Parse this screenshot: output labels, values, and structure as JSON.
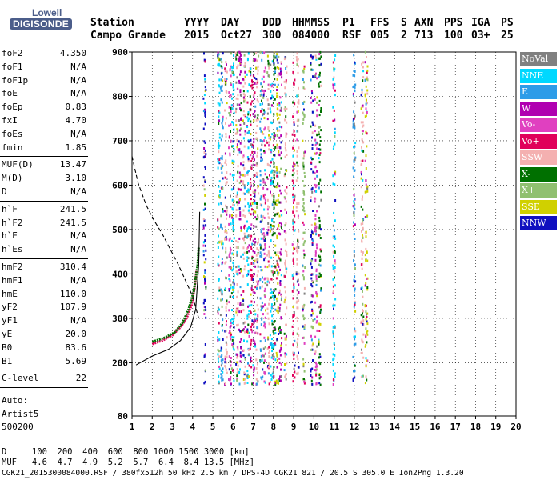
{
  "logo": {
    "line1": "Lowell",
    "line2": "DIGISONDE"
  },
  "header": {
    "row1": [
      "Station",
      "YYYY",
      "DAY",
      "DDD",
      "HHMMSS",
      "P1",
      "FFS",
      "S",
      "AXN",
      "PPS",
      "IGA",
      "PS"
    ],
    "row2": [
      "Campo Grande",
      "2015",
      "Oct27",
      "300",
      "084000",
      "RSF",
      "005",
      "2",
      "713",
      "100",
      "03+",
      "25"
    ]
  },
  "params": {
    "group1": [
      {
        "label": "foF2",
        "value": "4.350"
      },
      {
        "label": "foF1",
        "value": "N/A"
      },
      {
        "label": "foF1p",
        "value": "N/A"
      },
      {
        "label": "foE",
        "value": "N/A"
      },
      {
        "label": "foEp",
        "value": "0.83"
      },
      {
        "label": "fxI",
        "value": "4.70"
      },
      {
        "label": "foEs",
        "value": "N/A"
      },
      {
        "label": "fmin",
        "value": "1.85"
      }
    ],
    "group2": [
      {
        "label": "MUF(D)",
        "value": "13.47"
      },
      {
        "label": "M(D)",
        "value": "3.10"
      },
      {
        "label": "D",
        "value": "N/A"
      }
    ],
    "group3": [
      {
        "label": "h`F",
        "value": "241.5"
      },
      {
        "label": "h`F2",
        "value": "241.5"
      },
      {
        "label": "h`E",
        "value": "N/A"
      },
      {
        "label": "h`Es",
        "value": "N/A"
      }
    ],
    "group4": [
      {
        "label": "hmF2",
        "value": "310.4"
      },
      {
        "label": "hmF1",
        "value": "N/A"
      },
      {
        "label": "hmE",
        "value": "110.0"
      },
      {
        "label": "yF2",
        "value": "107.9"
      },
      {
        "label": "yF1",
        "value": "N/A"
      },
      {
        "label": "yE",
        "value": "20.0"
      },
      {
        "label": "B0",
        "value": "83.6"
      },
      {
        "label": "B1",
        "value": "5.69"
      }
    ],
    "group5": [
      {
        "label": "C-level",
        "value": "22"
      }
    ],
    "auto": [
      "Auto:",
      "Artist5",
      "500200"
    ]
  },
  "legend": [
    {
      "label": "NoVal",
      "color": "#808080"
    },
    {
      "label": "NNE",
      "color": "#00d8ff"
    },
    {
      "label": "E",
      "color": "#2d9ce8"
    },
    {
      "label": "W",
      "color": "#b000b0"
    },
    {
      "label": "Vo-",
      "color": "#e040c0"
    },
    {
      "label": "Vo+",
      "color": "#e0005a"
    },
    {
      "label": "SSW",
      "color": "#f4b0b0"
    },
    {
      "label": "X-",
      "color": "#007000"
    },
    {
      "label": "X+",
      "color": "#90c070"
    },
    {
      "label": "SSE",
      "color": "#d0d000"
    },
    {
      "label": "NNW",
      "color": "#1010c0"
    }
  ],
  "footer": {
    "line1": "D     100  200  400  600  800 1000 1500 3000 [km]",
    "line2": "MUF   4.6  4.7  4.9  5.2  5.7  6.4  8.4 13.5 [MHz]",
    "line3": "CGK21_2015300084000.RSF / 380fx512h 50 kHz 2.5 km / DPS-4D CGK21 821 / 20.5 S 305.0 E Ion2Png 1.3.20"
  },
  "chart_data": {
    "type": "scatter",
    "title": "",
    "xlabel": "",
    "ylabel": "",
    "xlim": [
      1,
      20
    ],
    "ylim": [
      80,
      900
    ],
    "xticks": [
      1,
      2,
      3,
      4,
      5,
      6,
      7,
      8,
      9,
      10,
      11,
      12,
      13,
      14,
      15,
      16,
      17,
      18,
      19,
      20
    ],
    "yticks": [
      200,
      300,
      400,
      500,
      600,
      700,
      800,
      900
    ],
    "yticks_extra_label": "80",
    "grid": true,
    "echo_columns": [
      {
        "x": 4.6,
        "color": "#1010c0"
      },
      {
        "x": 5.3,
        "color": "#00d8ff"
      },
      {
        "x": 5.45,
        "color": "#2d9ce8"
      },
      {
        "x": 5.65,
        "color": "#f4b0b0"
      },
      {
        "x": 5.85,
        "color": "#e040c0"
      },
      {
        "x": 6.0,
        "color": "#00d8ff"
      },
      {
        "x": 6.2,
        "color": "#f4b0b0"
      },
      {
        "x": 6.35,
        "color": "#b000b0"
      },
      {
        "x": 6.55,
        "color": "#f4b0b0"
      },
      {
        "x": 6.75,
        "color": "#00d8ff"
      },
      {
        "x": 6.9,
        "color": "#e0005a"
      },
      {
        "x": 7.05,
        "color": "#b000b0"
      },
      {
        "x": 7.2,
        "color": "#f4b0b0"
      },
      {
        "x": 7.4,
        "color": "#2d9ce8"
      },
      {
        "x": 7.55,
        "color": "#e040c0"
      },
      {
        "x": 7.75,
        "color": "#f4b0b0"
      },
      {
        "x": 7.9,
        "color": "#00d8ff"
      },
      {
        "x": 8.05,
        "color": "#007000"
      },
      {
        "x": 8.2,
        "color": "#d0d000"
      },
      {
        "x": 8.35,
        "color": "#b000b0"
      },
      {
        "x": 8.6,
        "color": "#f4b0b0"
      },
      {
        "x": 9.0,
        "color": "#e0005a"
      },
      {
        "x": 9.2,
        "color": "#f4b0b0"
      },
      {
        "x": 9.5,
        "color": "#90c070"
      },
      {
        "x": 9.9,
        "color": "#1010c0"
      },
      {
        "x": 10.1,
        "color": "#e040c0"
      },
      {
        "x": 10.3,
        "color": "#007000"
      },
      {
        "x": 11.0,
        "color": "#00d8ff"
      },
      {
        "x": 12.0,
        "color": "#2d9ce8"
      },
      {
        "x": 12.4,
        "color": "#f4b0b0"
      },
      {
        "x": 12.6,
        "color": "#d0d000"
      }
    ],
    "trace_series": [
      {
        "color": "#e0005a",
        "points": [
          [
            2.0,
            242
          ],
          [
            2.5,
            250
          ],
          [
            3.0,
            262
          ],
          [
            3.4,
            280
          ],
          [
            3.7,
            300
          ],
          [
            3.95,
            330
          ],
          [
            4.1,
            370
          ],
          [
            4.2,
            410
          ]
        ]
      },
      {
        "color": "#007000",
        "points": [
          [
            2.0,
            247
          ],
          [
            2.6,
            256
          ],
          [
            3.1,
            268
          ],
          [
            3.5,
            290
          ],
          [
            3.8,
            320
          ],
          [
            4.05,
            360
          ],
          [
            4.25,
            420
          ],
          [
            4.3,
            460
          ]
        ]
      }
    ],
    "profile_solid": [
      [
        1.2,
        195
      ],
      [
        2.0,
        215
      ],
      [
        2.8,
        230
      ],
      [
        3.4,
        250
      ],
      [
        3.9,
        280
      ],
      [
        4.15,
        320
      ],
      [
        4.3,
        420
      ],
      [
        4.35,
        540
      ]
    ],
    "profile_dashed": [
      [
        1.0,
        665
      ],
      [
        1.3,
        605
      ],
      [
        1.7,
        555
      ],
      [
        2.1,
        520
      ],
      [
        2.5,
        490
      ],
      [
        2.9,
        455
      ],
      [
        3.3,
        420
      ],
      [
        3.7,
        380
      ],
      [
        4.0,
        350
      ],
      [
        4.3,
        300
      ]
    ]
  }
}
